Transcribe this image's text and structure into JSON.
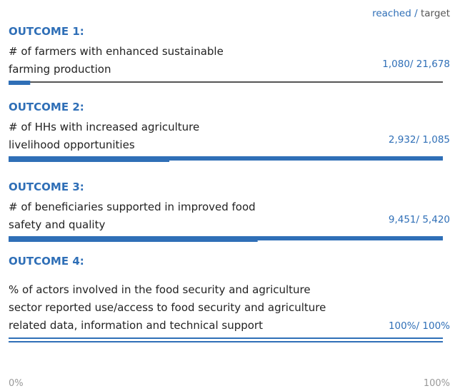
{
  "legend": {
    "reached": "reached",
    "separator": "/",
    "target": "target"
  },
  "outcomes": [
    {
      "title": "OUTCOME 1:",
      "description": [
        "# of farmers with enhanced sustainable",
        "farming production"
      ],
      "reached": 1080,
      "target": 21678,
      "label": "1,080/ 21,678"
    },
    {
      "title": "OUTCOME 2:",
      "description": [
        "# of HHs with increased agriculture",
        "livelihood opportunities"
      ],
      "reached": 2932,
      "target": 1085,
      "label": "2,932/ 1,085"
    },
    {
      "title": "OUTCOME 3:",
      "description": [
        "# of beneficiaries supported in improved food",
        "safety and quality"
      ],
      "reached": 9451,
      "target": 5420,
      "label": "9,451/ 5,420"
    },
    {
      "title": "OUTCOME 4:",
      "description": [
        "% of actors involved in the food security and agriculture",
        "sector reported use/access to food security and agriculture",
        "related data, information and technical support"
      ],
      "reached": 100,
      "target": 100,
      "label": "100%/ 100%"
    }
  ],
  "axis": {
    "min_label": "0%",
    "max_label": "100%"
  }
}
